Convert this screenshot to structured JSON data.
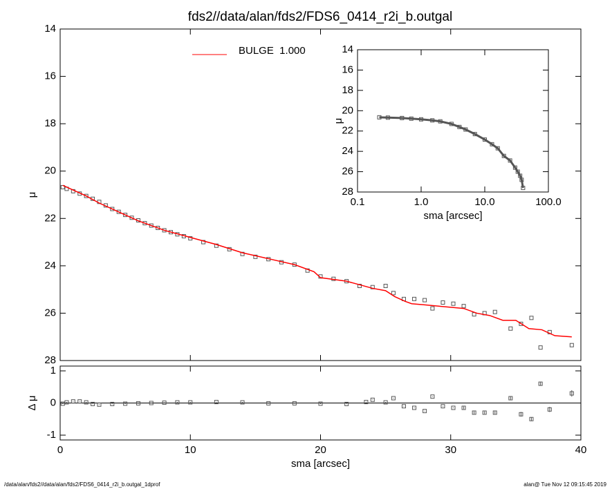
{
  "title": "fds2//data/alan/fds2/FDS6_0414_r2i_b.outgal",
  "footer_left": "/data/alan/fds2//data/alan/fds2/FDS6_0414_r2i_b.outgal_1dprof",
  "footer_right": "alan@  Tue Nov 12 09:15:45 2019",
  "chart_data": [
    {
      "type": "scatter",
      "ylabel": "μ",
      "xlim": [
        0,
        40
      ],
      "xticks": [
        0,
        10,
        20,
        30,
        40
      ],
      "xtick_labels": false,
      "ylim": [
        28,
        14
      ],
      "yticks": [
        14,
        16,
        18,
        20,
        22,
        24,
        26,
        28
      ],
      "legend": "top-left",
      "series": [
        {
          "style": "markers",
          "color": "#555555",
          "x": [
            0.2,
            0.5,
            1,
            1.5,
            2,
            2.5,
            3,
            3.5,
            4,
            4.5,
            5,
            5.5,
            6,
            6.5,
            7,
            7.5,
            8,
            8.5,
            9,
            9.5,
            10,
            11,
            12,
            13,
            14,
            15,
            16,
            17,
            18,
            19,
            20,
            21,
            22,
            23,
            24,
            25,
            25.6,
            26.4,
            27.2,
            28,
            28.6,
            29.4,
            30.2,
            31,
            31.8,
            32.6,
            33.4,
            34.6,
            35.4,
            36.2,
            36.9,
            37.6,
            39.3
          ],
          "values": [
            20.68,
            20.75,
            20.85,
            20.95,
            21.05,
            21.17,
            21.3,
            21.45,
            21.6,
            21.72,
            21.85,
            21.97,
            22.08,
            22.2,
            22.3,
            22.4,
            22.5,
            22.58,
            22.67,
            22.75,
            22.84,
            23.0,
            23.15,
            23.3,
            23.5,
            23.62,
            23.72,
            23.85,
            23.95,
            24.2,
            24.45,
            24.55,
            24.65,
            24.85,
            24.9,
            24.85,
            25.15,
            25.4,
            25.4,
            25.45,
            25.8,
            25.55,
            25.6,
            25.7,
            26.05,
            26.0,
            25.95,
            26.65,
            26.45,
            26.2,
            27.45,
            26.8,
            27.35
          ]
        },
        {
          "name": "BULGE  1.000",
          "style": "line",
          "color": "#ff0000",
          "x": [
            0.2,
            1,
            2,
            3,
            4,
            5,
            6,
            7,
            8,
            9,
            10,
            12,
            14,
            16,
            18,
            19.5,
            20,
            22,
            24,
            25,
            25.7,
            26.5,
            27,
            28,
            29,
            30,
            31,
            32,
            33,
            34,
            35,
            36,
            37,
            38,
            39.3
          ],
          "values": [
            20.6,
            20.8,
            21.05,
            21.35,
            21.6,
            21.85,
            22.1,
            22.3,
            22.5,
            22.65,
            22.8,
            23.1,
            23.45,
            23.7,
            23.95,
            24.25,
            24.5,
            24.65,
            24.95,
            25.05,
            25.3,
            25.5,
            25.6,
            25.65,
            25.7,
            25.75,
            25.8,
            26.0,
            26.1,
            26.3,
            26.3,
            26.65,
            26.7,
            26.95,
            27.0
          ]
        }
      ]
    },
    {
      "type": "scatter",
      "xlabel": "sma [arcsec]",
      "ylabel": "Δ μ",
      "xlim": [
        0,
        40
      ],
      "xticks": [
        0,
        10,
        20,
        30,
        40
      ],
      "xtick_labels": true,
      "ylim": [
        -1.15,
        1.15
      ],
      "yticks": [
        -1,
        0,
        1
      ],
      "reference_line": 0,
      "series": [
        {
          "style": "markers",
          "color": "#555555",
          "x": [
            0.2,
            0.5,
            1,
            1.5,
            2,
            2.5,
            3,
            4,
            5,
            6,
            7,
            8,
            9,
            10,
            12,
            14,
            16,
            18,
            20,
            22,
            23.5,
            24,
            25,
            25.6,
            26.4,
            27.2,
            28,
            28.6,
            29.4,
            30.2,
            31,
            31.8,
            32.6,
            33.4,
            34.6,
            35.4,
            36.2,
            36.9,
            37.6,
            39.3
          ],
          "values": [
            -0.02,
            0.02,
            0.05,
            0.05,
            0.02,
            -0.03,
            -0.05,
            -0.03,
            -0.02,
            -0.01,
            0.0,
            0.01,
            0.02,
            0.02,
            0.03,
            0.02,
            -0.01,
            -0.01,
            -0.02,
            -0.03,
            0.03,
            0.1,
            0.02,
            0.15,
            -0.1,
            -0.15,
            -0.25,
            0.2,
            -0.1,
            -0.15,
            -0.15,
            -0.3,
            -0.3,
            -0.3,
            0.15,
            -0.35,
            -0.5,
            0.6,
            -0.2,
            0.3
          ],
          "errors": [
            0.01,
            0.01,
            0.01,
            0.01,
            0.01,
            0.01,
            0.01,
            0.01,
            0.01,
            0.01,
            0.01,
            0.01,
            0.01,
            0.01,
            0.01,
            0.01,
            0.01,
            0.01,
            0.01,
            0.01,
            0.01,
            0.01,
            0.01,
            0.01,
            0.01,
            0.01,
            0.01,
            0.01,
            0.01,
            0.01,
            0.04,
            0.04,
            0.04,
            0.04,
            0.05,
            0.07,
            0.06,
            0.06,
            0.08,
            0.1
          ]
        }
      ]
    },
    {
      "type": "scatter",
      "xlabel": "sma [arcsec]",
      "ylabel": "μ",
      "xscale": "log",
      "xlim": [
        0.1,
        100
      ],
      "xticks": [
        {
          "value": 0.1,
          "label": "0.1"
        },
        {
          "value": 1,
          "label": "1.0"
        },
        {
          "value": 10,
          "label": "10.0"
        },
        {
          "value": 100,
          "label": "100.0"
        }
      ],
      "xtick_labels": true,
      "ylim": [
        28,
        14
      ],
      "yticks": [
        14,
        16,
        18,
        20,
        22,
        24,
        26,
        28
      ],
      "series": [
        {
          "style": "line+markers",
          "color": "#555555",
          "x": [
            0.22,
            0.3,
            0.5,
            0.7,
            1,
            1.5,
            2,
            3,
            4,
            5,
            7,
            10,
            13,
            16,
            20,
            25,
            30,
            33,
            36,
            38,
            40
          ],
          "values": [
            20.65,
            20.68,
            20.72,
            20.78,
            20.85,
            20.95,
            21.05,
            21.3,
            21.6,
            21.85,
            22.3,
            22.84,
            23.3,
            23.7,
            24.45,
            24.9,
            25.6,
            26.0,
            26.4,
            26.8,
            27.6
          ]
        }
      ]
    }
  ]
}
